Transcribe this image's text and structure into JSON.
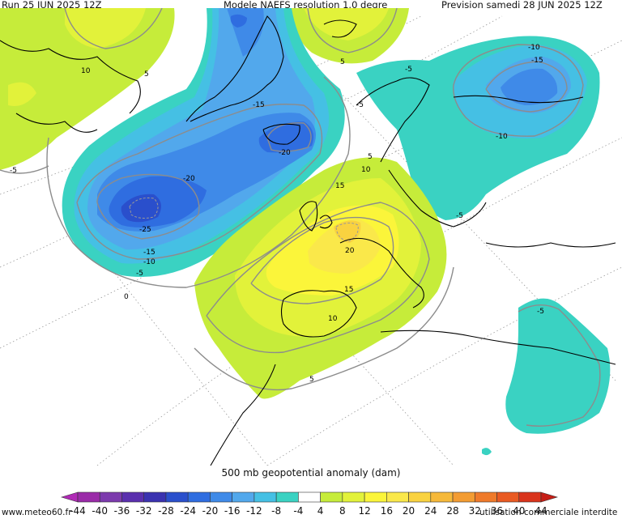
{
  "header": {
    "run": "Run 25 JUN 2025 12Z",
    "model": "Modele NAEFS resolution 1.0 degre",
    "forecast": "Prevision samedi 28 JUN 2025 12Z"
  },
  "caption": "500 mb geopotential anomaly (dam)",
  "footer": {
    "site": "www.meteo60.fr",
    "notice": "utilisation commerciale interdite"
  },
  "colorbar": {
    "ticks": [
      "-44",
      "-40",
      "-36",
      "-32",
      "-28",
      "-24",
      "-20",
      "-16",
      "-12",
      "-8",
      "-4",
      "4",
      "8",
      "12",
      "16",
      "20",
      "24",
      "28",
      "32",
      "36",
      "40",
      "44"
    ],
    "colors": [
      "#9a2ba8",
      "#7c3aad",
      "#5a2fae",
      "#3a32b0",
      "#2a4fcc",
      "#2f6de0",
      "#3f8ae8",
      "#52a8ec",
      "#45c0e4",
      "#3ad2c2",
      "#ffffff",
      "#c6ec3a",
      "#e2f23a",
      "#fbf53a",
      "#fae84a",
      "#f9d240",
      "#f6b93a",
      "#f39c32",
      "#ef7a2a",
      "#e95a22",
      "#d9341c"
    ]
  },
  "contour_labels": [
    {
      "id": "atl-low",
      "text": "-25"
    },
    {
      "id": "atl-20",
      "text": "-20"
    },
    {
      "id": "atl-15",
      "text": "-15"
    },
    {
      "id": "atl-10",
      "text": "-10"
    },
    {
      "id": "atl-5",
      "text": "-5"
    },
    {
      "id": "atl-0",
      "text": "0"
    },
    {
      "id": "ice-20",
      "text": "-20"
    },
    {
      "id": "ice-15",
      "text": "-15"
    },
    {
      "id": "nsea-5",
      "text": "-5"
    },
    {
      "id": "gb-5",
      "text": "-5"
    },
    {
      "id": "ru-10a",
      "text": "-10"
    },
    {
      "id": "ru-15",
      "text": "-15"
    },
    {
      "id": "ru-10b",
      "text": "-10"
    },
    {
      "id": "bal-5",
      "text": "-5"
    },
    {
      "id": "eu-20",
      "text": "20"
    },
    {
      "id": "eu-15a",
      "text": "15"
    },
    {
      "id": "eu-15b",
      "text": "15"
    },
    {
      "id": "eu-10a",
      "text": "10"
    },
    {
      "id": "eu-10b",
      "text": "10"
    },
    {
      "id": "eu-5",
      "text": "5"
    },
    {
      "id": "eu-5b",
      "text": "5"
    },
    {
      "id": "na-10",
      "text": "10"
    },
    {
      "id": "na-5",
      "text": "5"
    },
    {
      "id": "na-m5",
      "text": "-5"
    },
    {
      "id": "arc-5",
      "text": "5"
    },
    {
      "id": "eg-5",
      "text": "-5"
    }
  ]
}
